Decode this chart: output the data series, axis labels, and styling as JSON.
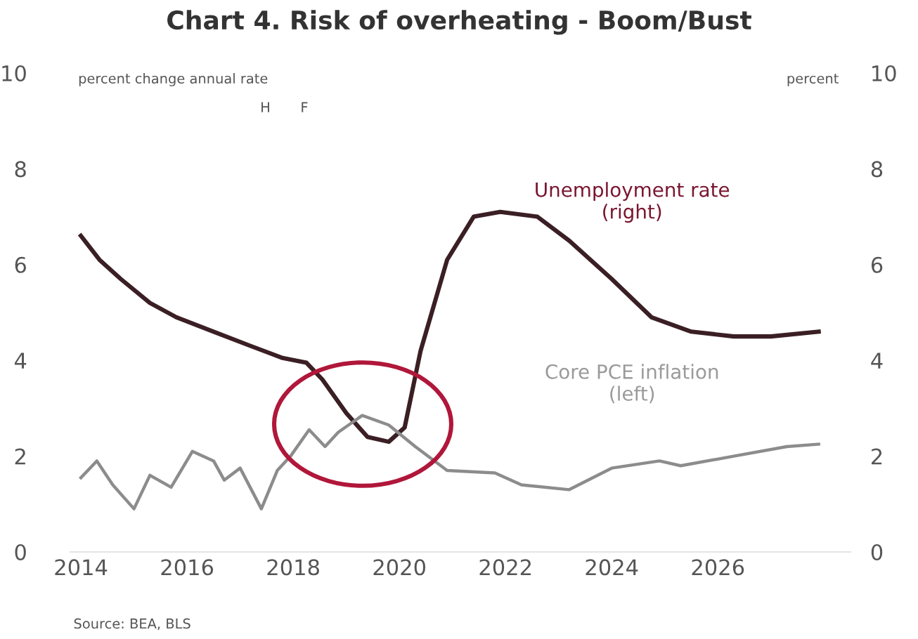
{
  "chart_data": {
    "type": "line",
    "title": "Chart 4. Risk of overheating - Boom/Bust",
    "ylabel": "percent change annual rate",
    "y2label": "percent",
    "annotations": [
      "H",
      "F",
      "Source: BEA, BLS"
    ],
    "xlim": [
      2013.8,
      2028.5
    ],
    "xticks": [
      2014,
      2016,
      2018,
      2020,
      2022,
      2024,
      2026
    ],
    "ylim": [
      0,
      10
    ],
    "yticks": [
      0,
      2,
      4,
      6,
      8,
      10
    ],
    "y2lim": [
      0,
      10
    ],
    "y2ticks": [
      0,
      2,
      4,
      6,
      8,
      10
    ],
    "grid": false,
    "legend": false,
    "marker": "none",
    "line_style": "solid",
    "series": [
      {
        "name": "Unemployment rate (right)",
        "color": "#3a1f24",
        "axis": "y2",
        "x": [
          2014.0,
          2014.35,
          2014.75,
          2015.3,
          2015.8,
          2016.5,
          2017.2,
          2017.8,
          2018.25,
          2018.55,
          2019.0,
          2019.4,
          2019.8,
          2020.1,
          2020.4,
          2020.9,
          2021.4,
          2021.9,
          2022.6,
          2023.2,
          2024.0,
          2024.75,
          2025.5,
          2026.3,
          2027.0,
          2027.9
        ],
        "values": [
          6.6,
          6.1,
          5.7,
          5.2,
          4.9,
          4.6,
          4.3,
          4.05,
          3.95,
          3.6,
          2.9,
          2.4,
          2.3,
          2.6,
          4.2,
          6.1,
          7.0,
          7.1,
          7.0,
          6.5,
          5.7,
          4.9,
          4.6,
          4.5,
          4.5,
          4.6
        ]
      },
      {
        "name": "Core PCE inflation (left)",
        "color": "#8c8c8c",
        "x": [
          2014.0,
          2014.3,
          2014.6,
          2015.0,
          2015.3,
          2015.7,
          2016.1,
          2016.5,
          2016.7,
          2017.0,
          2017.4,
          2017.7,
          2017.95,
          2018.3,
          2018.6,
          2018.85,
          2019.3,
          2019.8,
          2020.3,
          2020.9,
          2021.8,
          2022.3,
          2023.2,
          2024.0,
          2024.9,
          2025.3,
          2026.3,
          2027.3,
          2027.9
        ],
        "values": [
          1.55,
          1.9,
          1.4,
          0.9,
          1.6,
          1.35,
          2.1,
          1.9,
          1.5,
          1.75,
          0.9,
          1.7,
          2.0,
          2.55,
          2.2,
          2.5,
          2.85,
          2.65,
          2.2,
          1.7,
          1.65,
          1.4,
          1.3,
          1.75,
          1.9,
          1.8,
          2.0,
          2.2,
          2.25
        ]
      }
    ]
  }
}
